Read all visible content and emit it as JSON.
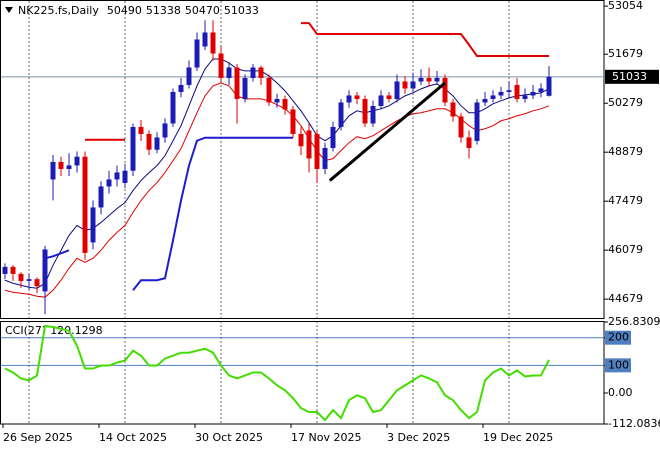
{
  "chart_data": [
    {
      "type": "candlestick",
      "title": "NK225.fs,Daily",
      "categories": [
        "26 Sep 2025",
        null,
        null,
        null,
        null,
        null,
        null,
        null,
        null,
        null,
        null,
        null,
        "14 Oct 2025",
        null,
        null,
        null,
        null,
        null,
        null,
        null,
        null,
        null,
        null,
        null,
        "30 Oct 2025",
        null,
        null,
        null,
        null,
        null,
        null,
        null,
        null,
        null,
        null,
        null,
        "17 Nov 2025",
        null,
        null,
        null,
        null,
        null,
        null,
        null,
        null,
        null,
        null,
        null,
        "3 Dec 2025",
        null,
        null,
        null,
        null,
        null,
        null,
        null,
        null,
        null,
        null,
        null,
        "19 Dec 2025",
        null,
        null,
        null,
        null,
        null,
        null,
        null,
        null
      ],
      "open": [
        45400,
        45600,
        45400,
        45200,
        45250,
        44900,
        48100,
        48600,
        48400,
        48500,
        48750,
        46300,
        47300,
        47900,
        48100,
        48000,
        48350,
        49600,
        49400,
        48950,
        49300,
        49700,
        50600,
        50800,
        51300,
        51900,
        52300,
        51700,
        51000,
        51300,
        50400,
        51000,
        51300,
        51000,
        50300,
        50400,
        50100,
        49400,
        49500,
        49400,
        48400,
        49000,
        49600,
        50300,
        50500,
        50400,
        49700,
        50200,
        50500,
        50400,
        50900,
        50700,
        50900,
        51000,
        50900,
        51000,
        50300,
        49900,
        49300,
        49200,
        50300,
        50400,
        50500,
        50600,
        50800,
        50400,
        50500,
        50600,
        50490
      ],
      "high": [
        45700,
        45650,
        45450,
        45400,
        45300,
        46200,
        48800,
        48750,
        48850,
        48900,
        48900,
        47500,
        48050,
        48350,
        48500,
        48550,
        49700,
        49800,
        49500,
        49450,
        49850,
        50700,
        51000,
        51500,
        52300,
        52650,
        52650,
        51900,
        51450,
        51400,
        51100,
        51400,
        51350,
        51100,
        50550,
        50500,
        50200,
        49600,
        49700,
        49500,
        49150,
        49750,
        50400,
        50650,
        50600,
        50500,
        50350,
        50650,
        50600,
        51100,
        51050,
        51150,
        51250,
        51300,
        51200,
        51100,
        50400,
        50000,
        49500,
        50400,
        50600,
        50650,
        50750,
        50900,
        51000,
        50700,
        50800,
        50850,
        51338
      ],
      "low": [
        45250,
        45200,
        45000,
        44950,
        44850,
        44250,
        47500,
        48200,
        48200,
        48300,
        45800,
        46100,
        47100,
        47700,
        47900,
        47850,
        48200,
        49200,
        48800,
        48850,
        49150,
        49600,
        50450,
        50700,
        51200,
        51800,
        51500,
        50850,
        50800,
        49700,
        50300,
        50900,
        50800,
        50200,
        50150,
        49950,
        49300,
        48800,
        48300,
        48000,
        48250,
        48900,
        49500,
        50150,
        50250,
        49600,
        49600,
        50100,
        50300,
        50300,
        50550,
        50600,
        50800,
        50750,
        50800,
        50200,
        49750,
        49150,
        48700,
        49100,
        50200,
        50300,
        50400,
        50450,
        50300,
        50300,
        50400,
        50450,
        50470
      ],
      "close": [
        45600,
        45400,
        45200,
        45250,
        45050,
        46100,
        48600,
        48400,
        48500,
        48750,
        46000,
        47300,
        47900,
        48100,
        48300,
        48350,
        49600,
        49400,
        48950,
        49300,
        49700,
        50600,
        50800,
        51300,
        52100,
        52300,
        51700,
        51000,
        51300,
        50400,
        51000,
        51300,
        51000,
        50300,
        50400,
        50100,
        49400,
        49050,
        48700,
        48400,
        49000,
        49600,
        50300,
        50500,
        50400,
        49700,
        50200,
        50500,
        50400,
        50900,
        50700,
        50900,
        51000,
        50900,
        51000,
        50300,
        49900,
        49300,
        49000,
        50300,
        50400,
        50500,
        50600,
        50650,
        50400,
        50500,
        50600,
        50700,
        51033
      ],
      "up_color": "#1c1cb4",
      "down_color": "#e00000",
      "lines": [
        {
          "color": "#0b0b80",
          "values": [
            45219,
            45133,
            45076,
            45019,
            44991,
            45133,
            45646,
            46074,
            46501,
            46786,
            46643,
            46700,
            46871,
            47071,
            47270,
            47441,
            47783,
            48068,
            48296,
            48495,
            48780,
            49207,
            49635,
            50204,
            50774,
            51259,
            51544,
            51544,
            51430,
            51259,
            51202,
            51202,
            51202,
            51059,
            50860,
            50632,
            50347,
            50062,
            49720,
            49350,
            49207,
            49350,
            49635,
            49920,
            50062,
            50005,
            50062,
            50119,
            50204,
            50347,
            50489,
            50575,
            50689,
            50774,
            50831,
            50689,
            50489,
            50204,
            50005,
            50005,
            50119,
            50261,
            50347,
            50432,
            50489,
            50518,
            50546,
            50575,
            50689
          ]
        },
        {
          "color": "#e00000",
          "values": [
            44934,
            44877,
            44849,
            44820,
            44763,
            44735,
            44934,
            45219,
            45561,
            45846,
            45732,
            45846,
            46074,
            46359,
            46586,
            46786,
            47156,
            47498,
            47783,
            48011,
            48296,
            48638,
            48980,
            49492,
            50005,
            50489,
            50774,
            50860,
            50774,
            50489,
            50404,
            50404,
            50404,
            50347,
            50233,
            50119,
            49920,
            49635,
            49265,
            48923,
            48638,
            48695,
            48923,
            49150,
            49321,
            49265,
            49350,
            49492,
            49635,
            49777,
            49891,
            49977,
            50005,
            50062,
            50119,
            50119,
            50005,
            49834,
            49635,
            49492,
            49549,
            49635,
            49777,
            49834,
            49920,
            49977,
            50062,
            50119,
            50204
          ]
        },
        {
          "color": "#e00000",
          "width": 2,
          "values": [
            null,
            null,
            null,
            null,
            null,
            null,
            null,
            null,
            null,
            null,
            49236,
            49236,
            49236,
            49236,
            49236,
            49236,
            null,
            null,
            null,
            null,
            null,
            null,
            null,
            null,
            null,
            null,
            null,
            null,
            null,
            null,
            null,
            null,
            null,
            null,
            null,
            null,
            null,
            52569,
            52569,
            52256,
            52256,
            52256,
            52256,
            52256,
            52256,
            52256,
            52256,
            52256,
            52256,
            52256,
            52256,
            52256,
            52256,
            52256,
            52256,
            52256,
            52256,
            52256,
            51950,
            51629,
            51629,
            51629,
            51629,
            51629,
            51629,
            51629,
            51629,
            51629,
            51629
          ]
        },
        {
          "color": "#1c1cd0",
          "width": 2,
          "values": [
            null,
            null,
            null,
            null,
            null,
            45846,
            45903,
            45988,
            46074,
            null,
            null,
            null,
            null,
            null,
            null,
            null,
            44934,
            45219,
            45219,
            45219,
            45276,
            46359,
            47498,
            48495,
            49207,
            49293,
            49293,
            49293,
            49293,
            49293,
            49293,
            49293,
            49293,
            49293,
            49293,
            49293,
            49293,
            null,
            null,
            null,
            null,
            null,
            null,
            null,
            null,
            null,
            null,
            null,
            null,
            null,
            null,
            null,
            null,
            null,
            null,
            null,
            null,
            null,
            null,
            null,
            null,
            null,
            null,
            null,
            null,
            null,
            null,
            null,
            null
          ]
        }
      ],
      "trend_line": {
        "x": [
          40.6,
          55
        ],
        "values": [
          48068,
          50860
        ],
        "color": "#000000"
      },
      "price_line_color": "#7f8fa6",
      "ylim": [
        44140,
        53200
      ],
      "yticks": [
        53054,
        51679,
        50279,
        48879,
        47479,
        46079,
        44679
      ],
      "grid": "x"
    },
    {
      "type": "line",
      "title": "CCI(27)",
      "color": "#44dd00",
      "values": [
        88.6,
        74.2,
        52.8,
        45.6,
        63.5,
        242.5,
        238.9,
        231.8,
        224.6,
        170.9,
        88.6,
        88.6,
        99.3,
        99.3,
        110.1,
        117.2,
        153.0,
        135.1,
        99.3,
        99.3,
        124.4,
        135.1,
        145.8,
        145.8,
        153.0,
        160.2,
        145.8,
        99.3,
        63.5,
        52.8,
        63.5,
        74.2,
        74.2,
        52.8,
        27.7,
        9.8,
        -18.8,
        -54.6,
        -68.9,
        -68.9,
        -97.6,
        -61.8,
        -90.4,
        -26.0,
        -8.1,
        -18.8,
        -68.9,
        -61.8,
        -26.0,
        9.8,
        27.7,
        45.6,
        63.5,
        52.8,
        38.5,
        -8.1,
        -26.0,
        -61.8,
        -90.4,
        -68.9,
        45.6,
        74.2,
        88.6,
        63.5,
        81.4,
        60.0,
        63.5,
        63.5,
        120.1298
      ],
      "ylim": [
        -112.0836,
        256.8309
      ],
      "yticks": [
        256.8309,
        200,
        100,
        {
          "value": 0,
          "label": "0.00"
        },
        -112.0836
      ],
      "levels": [
        200,
        100
      ],
      "level_color": "#4f7fc0"
    }
  ]
}
